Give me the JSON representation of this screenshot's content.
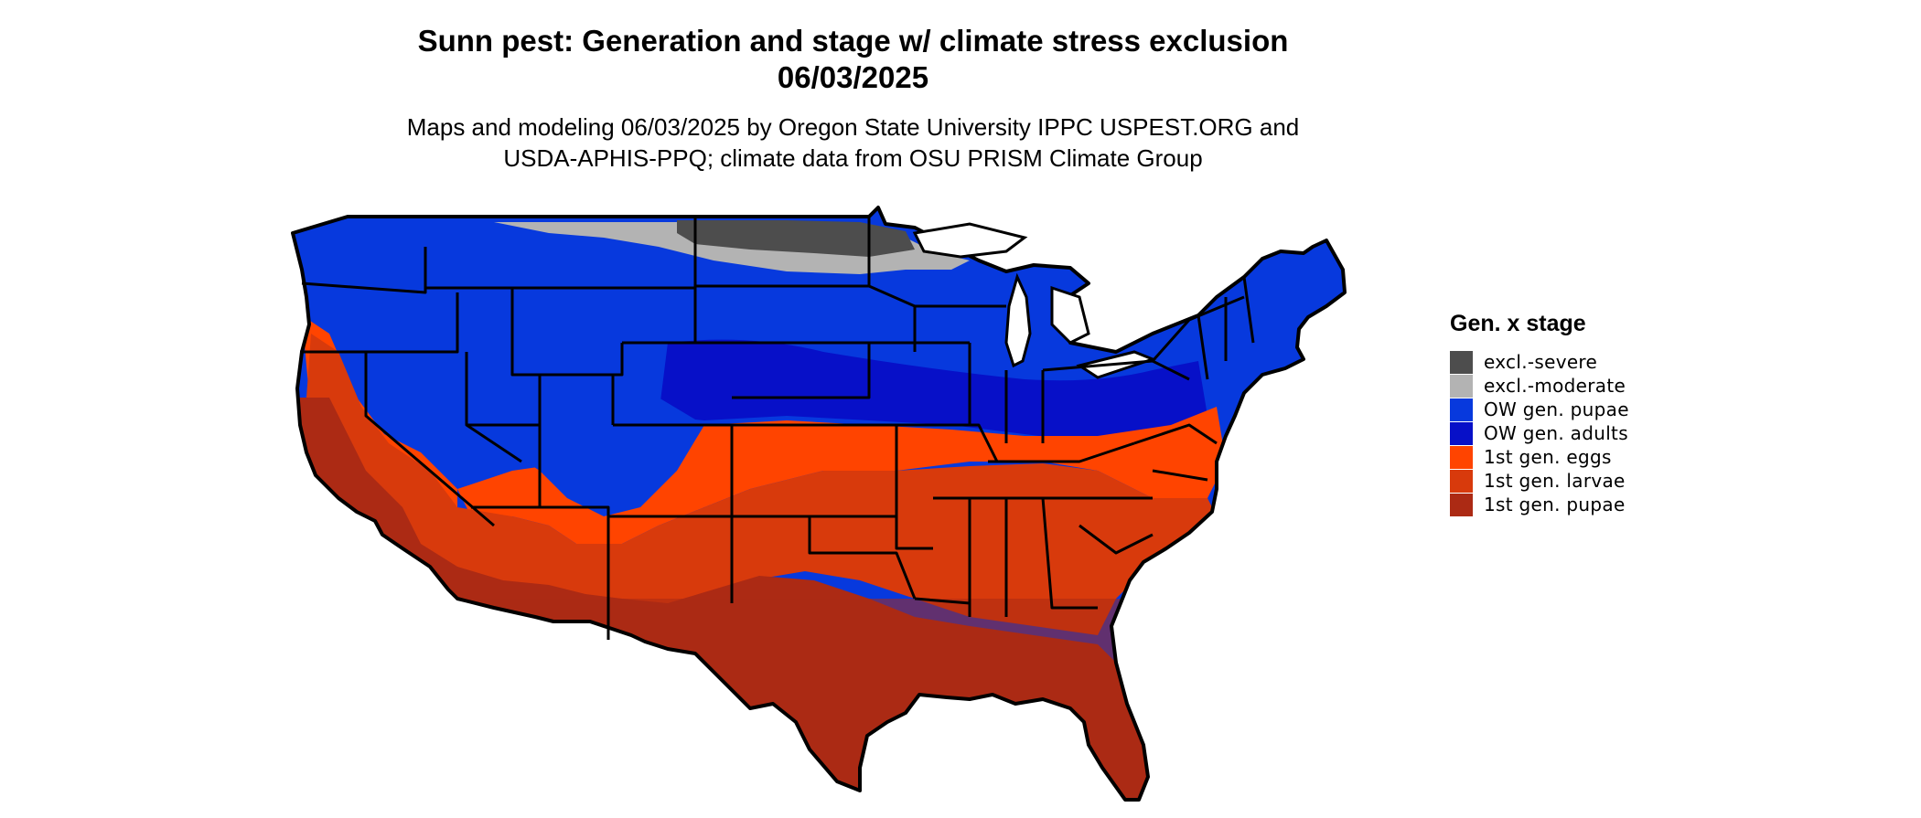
{
  "header": {
    "title_line1": "Sunn pest: Generation and stage w/ climate stress exclusion",
    "title_line2": "06/03/2025",
    "subtitle_line1": "Maps and modeling 06/03/2025 by Oregon State University IPPC USPEST.ORG and",
    "subtitle_line2": "USDA-APHIS-PPQ; climate data from OSU PRISM Climate Group"
  },
  "legend": {
    "title": "Gen. x stage",
    "items": [
      {
        "label": "excl.-severe",
        "color": "#4d4d4d"
      },
      {
        "label": "excl.-moderate",
        "color": "#b3b3b3"
      },
      {
        "label": "OW gen. pupae",
        "color": "#0739dd"
      },
      {
        "label": "OW gen. adults",
        "color": "#0710c8"
      },
      {
        "label": "1st gen. eggs",
        "color": "#ff4400"
      },
      {
        "label": "1st gen. larvae",
        "color": "#d83a0c"
      },
      {
        "label": "1st gen. pupae",
        "color": "#ac2a14"
      }
    ]
  }
}
